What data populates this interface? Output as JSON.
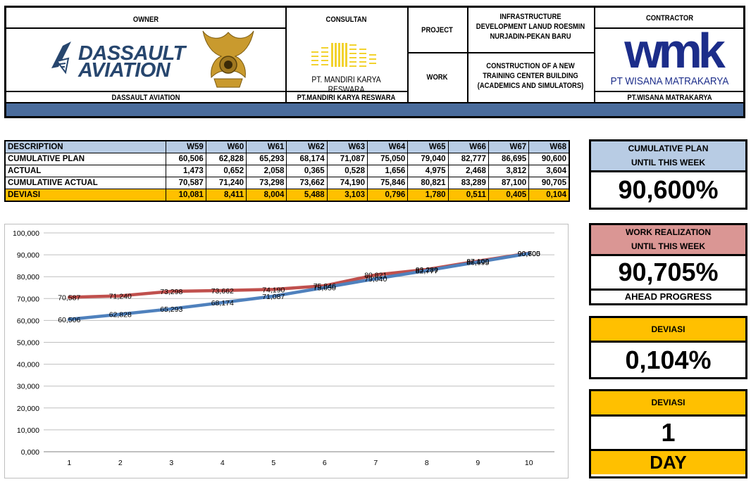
{
  "header": {
    "owner_label": "OWNER",
    "owner_logo_line1": "DASSAULT",
    "owner_logo_line2": "AVIATION",
    "owner_name": "DASSAULT AVIATION",
    "consultant_label": "CONSULTAN",
    "consultant_logo_text": "PT. MANDIRI KARYA RESWARA",
    "consultant_name": "PT.MANDIRI KARYA RESWARA",
    "project_label": "PROJECT",
    "project_name": "INFRASTRUCTURE DEVELOPMENT LANUD ROESMIN NURJADIN-PEKAN BARU",
    "work_label": "WORK",
    "work_name": "CONSTRUCTION OF A NEW TRAINING CENTER BUILDING (ACADEMICS AND SIMULATORS)",
    "contractor_label": "CONTRACTOR",
    "contractor_logo_mark": "wmk",
    "contractor_logo_text": "PT WISANA MATRAKARYA",
    "contractor_name": "PT.WISANA MATRAKARYA"
  },
  "table": {
    "description_header": "DESCRIPTION",
    "weeks": [
      "W59",
      "W60",
      "W61",
      "W62",
      "W63",
      "W64",
      "W65",
      "W66",
      "W67",
      "W68"
    ],
    "rows": [
      {
        "label": "CUMULATIVE PLAN",
        "values": [
          "60,506",
          "62,828",
          "65,293",
          "68,174",
          "71,087",
          "75,050",
          "79,040",
          "82,777",
          "86,695",
          "90,600"
        ]
      },
      {
        "label": "ACTUAL",
        "values": [
          "1,473",
          "0,652",
          "2,058",
          "0,365",
          "0,528",
          "1,656",
          "4,975",
          "2,468",
          "3,812",
          "3,604"
        ]
      },
      {
        "label": "CUMULATIIVE ACTUAL",
        "values": [
          "70,587",
          "71,240",
          "73,298",
          "73,662",
          "74,190",
          "75,846",
          "80,821",
          "83,289",
          "87,100",
          "90,705"
        ]
      },
      {
        "label": "DEVIASI",
        "values": [
          "10,081",
          "8,411",
          "8,004",
          "5,488",
          "3,103",
          "0,796",
          "1,780",
          "0,511",
          "0,405",
          "0,104"
        ]
      }
    ]
  },
  "panels": {
    "plan_title_1": "CUMULATIVE PLAN",
    "plan_title_2": "UNTIL THIS WEEK",
    "plan_value": "90,600%",
    "real_title_1": "WORK REALIZATION",
    "real_title_2": "UNTIL THIS WEEK",
    "real_value": "90,705%",
    "real_status": "AHEAD PROGRESS",
    "dev_title": "DEVIASI",
    "dev_value": "0,104%",
    "dev_days_title": "DEVIASI",
    "dev_days_value": "1",
    "dev_days_unit": "DAY"
  },
  "colors": {
    "header_band": "#4a6c9c",
    "table_header": "#b8cce4",
    "deviation_row": "#ffc000",
    "plan_series": "#4f81bd",
    "actual_series": "#c0504d",
    "realization_header": "#da9694"
  },
  "chart_data": {
    "type": "line",
    "x": [
      1,
      2,
      3,
      4,
      5,
      6,
      7,
      8,
      9,
      10
    ],
    "ylim": [
      0,
      100000
    ],
    "yticks": [
      "0,000",
      "10,000",
      "20,000",
      "30,000",
      "40,000",
      "50,000",
      "60,000",
      "70,000",
      "80,000",
      "90,000",
      "100,000"
    ],
    "grid": true,
    "series": [
      {
        "values": [
          60506,
          62828,
          65293,
          68174,
          71087,
          75050,
          79040,
          82777,
          86695,
          90600
        ],
        "labels": [
          "60,506",
          "62,828",
          "65,293",
          "68,174",
          "71,087",
          "75,050",
          "79,040",
          "82,777",
          "86,695",
          "90,600"
        ]
      },
      {
        "values": [
          70587,
          71240,
          73298,
          73662,
          74190,
          75846,
          80821,
          83289,
          87100,
          90705
        ],
        "labels": [
          "70,587",
          "71,240",
          "73,298",
          "73,662",
          "74,190",
          "75,846",
          "80,821",
          "83,289",
          "87,100",
          "90,705"
        ]
      }
    ]
  }
}
